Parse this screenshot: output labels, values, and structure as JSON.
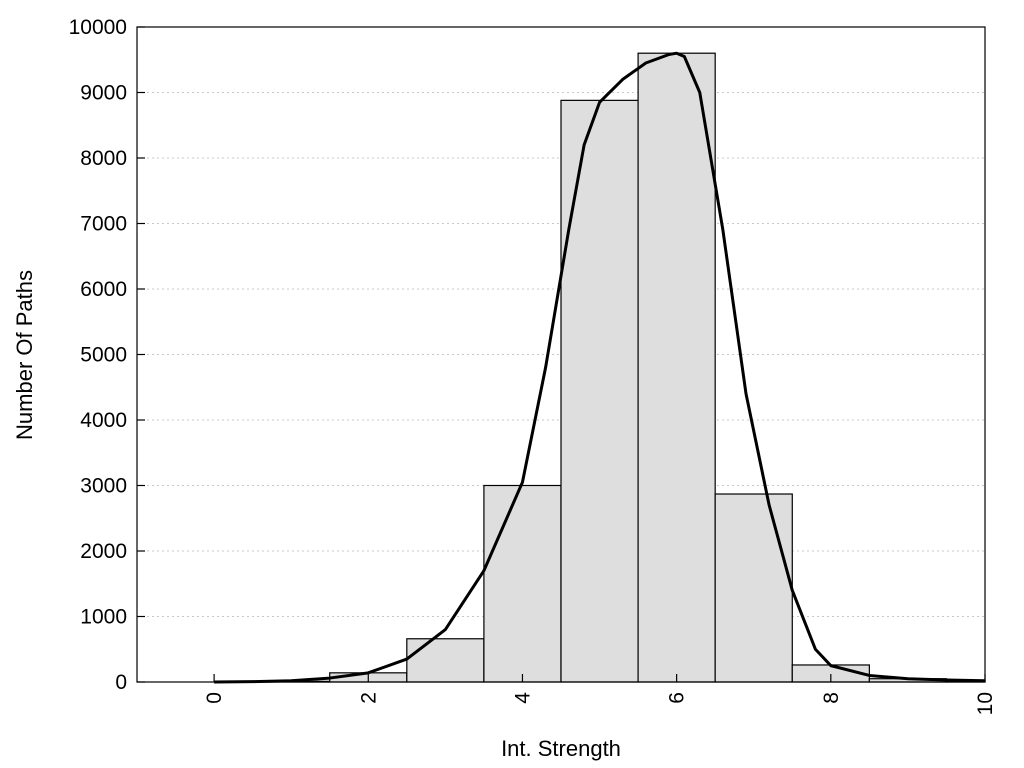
{
  "chart_data": {
    "type": "bar",
    "xlabel": "Int. Strength",
    "ylabel": "Number Of Paths",
    "xlim": [
      -1,
      10
    ],
    "ylim": [
      0,
      10000
    ],
    "x_ticks": [
      0,
      2,
      4,
      6,
      8,
      10
    ],
    "y_ticks": [
      0,
      1000,
      2000,
      3000,
      4000,
      5000,
      6000,
      7000,
      8000,
      9000,
      10000
    ],
    "grid": "horizontal-dotted",
    "bar_color": "#dedede",
    "bars": [
      {
        "x": 0,
        "value": 0
      },
      {
        "x": 1,
        "value": 10
      },
      {
        "x": 2,
        "value": 140
      },
      {
        "x": 3,
        "value": 660
      },
      {
        "x": 4,
        "value": 3000
      },
      {
        "x": 5,
        "value": 8880
      },
      {
        "x": 6,
        "value": 9600
      },
      {
        "x": 7,
        "value": 2870
      },
      {
        "x": 8,
        "value": 260
      },
      {
        "x": 9,
        "value": 50
      },
      {
        "x": 10,
        "value": 20
      }
    ],
    "curve": {
      "x": [
        0,
        0.5,
        1,
        1.5,
        2,
        2.5,
        3,
        3.5,
        4,
        4.3,
        4.6,
        4.8,
        5,
        5.3,
        5.6,
        5.9,
        6,
        6.1,
        6.3,
        6.6,
        6.9,
        7.2,
        7.5,
        7.8,
        8,
        8.5,
        9,
        9.5,
        10
      ],
      "y": [
        0,
        5,
        20,
        60,
        140,
        350,
        800,
        1700,
        3050,
        4800,
        6900,
        8200,
        8850,
        9200,
        9450,
        9580,
        9600,
        9550,
        9000,
        6900,
        4400,
        2700,
        1400,
        500,
        250,
        100,
        50,
        30,
        20
      ]
    }
  }
}
